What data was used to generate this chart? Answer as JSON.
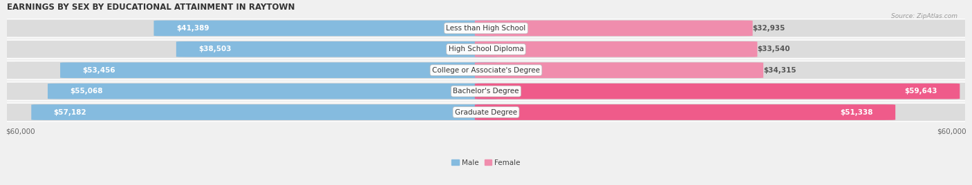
{
  "title": "EARNINGS BY SEX BY EDUCATIONAL ATTAINMENT IN RAYTOWN",
  "source": "Source: ZipAtlas.com",
  "categories": [
    "Less than High School",
    "High School Diploma",
    "College or Associate's Degree",
    "Bachelor's Degree",
    "Graduate Degree"
  ],
  "male_values": [
    41389,
    38503,
    53456,
    55068,
    57182
  ],
  "female_values": [
    32935,
    33540,
    34315,
    59643,
    51338
  ],
  "male_labels": [
    "$41,389",
    "$38,503",
    "$53,456",
    "$55,068",
    "$57,182"
  ],
  "female_labels": [
    "$32,935",
    "$33,540",
    "$34,315",
    "$59,643",
    "$51,338"
  ],
  "max_value": 60000,
  "male_color": "#85BBDF",
  "female_color": "#F08DAD",
  "female_color_bright": "#EF5B8A",
  "bg_color": "#F0F0F0",
  "bar_bg_color": "#E0E0E0",
  "title_fontsize": 8.5,
  "label_fontsize": 7.5,
  "category_fontsize": 7.5,
  "axis_label_fontsize": 7.5
}
